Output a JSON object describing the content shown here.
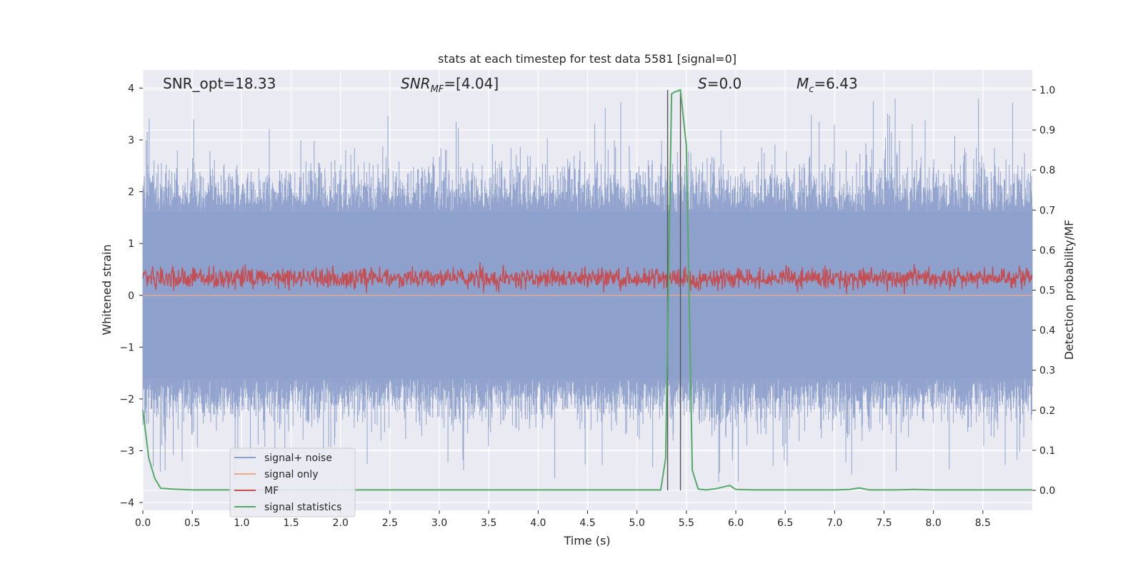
{
  "chart_data": {
    "type": "line",
    "title": "stats at each timestep for test data 5581 [signal=0]",
    "xlabel": "Time (s)",
    "ylabel_left": "Whitened strain",
    "ylabel_right": "Detection probability/MF",
    "xlim": [
      0.0,
      9.0
    ],
    "ylim_left": [
      -4.15,
      4.35
    ],
    "ylim_right": [
      -0.05,
      1.05
    ],
    "x_ticks": [
      "0.0",
      "0.5",
      "1.0",
      "1.5",
      "2.0",
      "2.5",
      "3.0",
      "3.5",
      "4.0",
      "4.5",
      "5.0",
      "5.5",
      "6.0",
      "6.5",
      "7.0",
      "7.5",
      "8.0",
      "8.5"
    ],
    "y_left_ticks": [
      "4",
      "3",
      "2",
      "1",
      "0",
      "−1",
      "−2",
      "−3",
      "−4"
    ],
    "y_right_ticks": [
      "1.0",
      "0.9",
      "0.8",
      "0.7",
      "0.6",
      "0.5",
      "0.4",
      "0.3",
      "0.2",
      "0.1",
      "0.0"
    ],
    "annotations": {
      "snr_opt": "SNR_opt=18.33",
      "snr_mf_main": "SNR",
      "snr_mf_sub": "MF",
      "snr_mf_rest": "=[4.04]",
      "s_label": "S",
      "s_rest": "=0.0",
      "mc_main": "M",
      "mc_sub": "c",
      "mc_rest": "=6.43"
    },
    "series": [
      {
        "name": "signal+ noise",
        "color": "#8da0cb",
        "axis": "left",
        "range": [
          -3.6,
          4.0
        ],
        "typical": [
          -1.6,
          1.6
        ]
      },
      {
        "name": "signal only",
        "color": "#e8a98b",
        "axis": "left",
        "constant": 0.0
      },
      {
        "name": "MF",
        "color": "#c44e52",
        "axis": "right",
        "range": [
          0.49,
          0.6
        ],
        "typical_center": 0.53
      },
      {
        "name": "signal statistics",
        "color": "#55a868",
        "axis": "right",
        "x": [
          0.0,
          0.06,
          0.12,
          0.18,
          0.3,
          0.5,
          1.0,
          2.0,
          3.0,
          4.0,
          5.0,
          5.24,
          5.29,
          5.35,
          5.38,
          5.44,
          5.5,
          5.56,
          5.62,
          5.7,
          5.8,
          5.9,
          5.94,
          6.0,
          6.2,
          7.0,
          7.15,
          7.25,
          7.35,
          7.6,
          7.8,
          8.0,
          9.0
        ],
        "y": [
          0.2,
          0.08,
          0.03,
          0.005,
          0.003,
          0.001,
          0.001,
          0.001,
          0.001,
          0.001,
          0.001,
          0.001,
          0.08,
          0.99,
          0.995,
          1.0,
          0.86,
          0.05,
          0.003,
          0.001,
          0.004,
          0.01,
          0.012,
          0.002,
          0.001,
          0.001,
          0.002,
          0.006,
          0.001,
          0.001,
          0.002,
          0.001,
          0.001
        ]
      }
    ],
    "vertical_markers": [
      5.31,
      5.44
    ],
    "legend": {
      "placement": "lower-left",
      "entries": [
        "signal+ noise",
        "signal only",
        "MF",
        "signal statistics"
      ]
    }
  }
}
